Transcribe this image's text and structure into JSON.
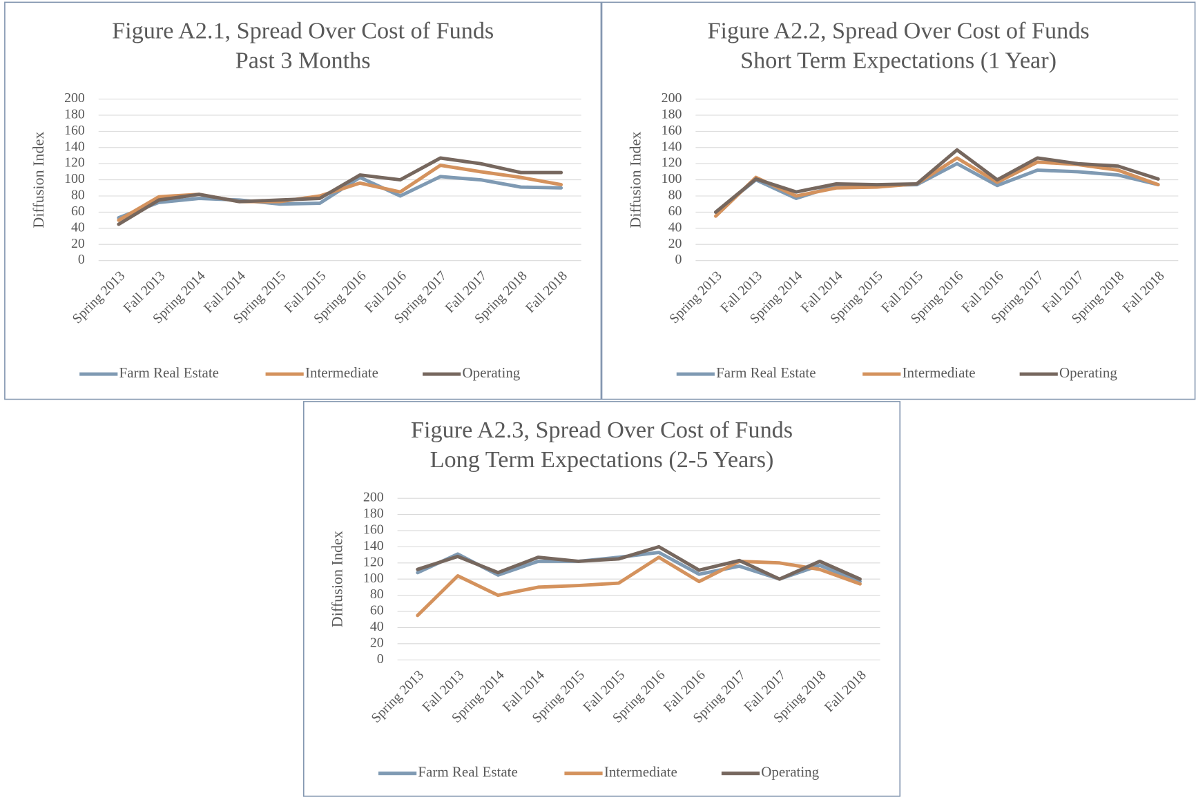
{
  "chart_data": [
    {
      "type": "line",
      "title": "Figure A2.1, Spread Over Cost of Funds",
      "subtitle": "Past 3 Months",
      "y_label": "Diffusion Index",
      "categories": [
        "Spring 2013",
        "Fall 2013",
        "Spring 2014",
        "Fall 2014",
        "Spring 2015",
        "Fall 2015",
        "Spring 2016",
        "Fall 2016",
        "Spring 2017",
        "Fall 2017",
        "Spring 2018",
        "Fall 2018"
      ],
      "series": [
        {
          "name": "Farm Real Estate",
          "color": "#7f9ab3",
          "values": [
            53,
            72,
            77,
            75,
            70,
            71,
            103,
            80,
            104,
            100,
            91,
            90
          ]
        },
        {
          "name": "Intermediate",
          "color": "#d4925d",
          "values": [
            50,
            79,
            82,
            73,
            73,
            80,
            96,
            85,
            118,
            110,
            103,
            94
          ]
        },
        {
          "name": "Operating",
          "color": "#76675e",
          "values": [
            45,
            75,
            82,
            73,
            75,
            77,
            106,
            100,
            127,
            120,
            109,
            109
          ]
        }
      ],
      "ylim": [
        0,
        200
      ],
      "yticks": [
        0,
        20,
        40,
        60,
        80,
        100,
        120,
        140,
        160,
        180,
        200
      ],
      "grid": true,
      "legend": "bottom"
    },
    {
      "type": "line",
      "title": "Figure A2.2, Spread Over Cost of Funds",
      "subtitle": "Short Term Expectations (1 Year)",
      "y_label": "Diffusion Index",
      "categories": [
        "Spring 2013",
        "Fall 2013",
        "Spring 2014",
        "Fall 2014",
        "Spring 2015",
        "Fall 2015",
        "Spring 2016",
        "Fall 2016",
        "Spring 2017",
        "Fall 2017",
        "Spring 2018",
        "Fall 2018"
      ],
      "series": [
        {
          "name": "Farm Real Estate",
          "color": "#7f9ab3",
          "values": [
            60,
            100,
            77,
            93,
            93,
            94,
            120,
            93,
            112,
            110,
            106,
            94
          ]
        },
        {
          "name": "Intermediate",
          "color": "#d4925d",
          "values": [
            55,
            103,
            80,
            90,
            91,
            95,
            127,
            97,
            122,
            119,
            112,
            94
          ]
        },
        {
          "name": "Operating",
          "color": "#76675e",
          "values": [
            60,
            101,
            85,
            95,
            94,
            95,
            137,
            100,
            127,
            120,
            117,
            101
          ]
        }
      ],
      "ylim": [
        0,
        200
      ],
      "yticks": [
        0,
        20,
        40,
        60,
        80,
        100,
        120,
        140,
        160,
        180,
        200
      ],
      "grid": true,
      "legend": "bottom"
    },
    {
      "type": "line",
      "title": "Figure A2.3, Spread Over Cost of Funds",
      "subtitle": "Long Term Expectations (2-5 Years)",
      "y_label": "Diffusion Index",
      "categories": [
        "Spring 2013",
        "Fall 2013",
        "Spring 2014",
        "Fall 2014",
        "Spring 2015",
        "Fall 2015",
        "Spring 2016",
        "Fall 2016",
        "Spring 2017",
        "Fall 2017",
        "Spring 2018",
        "Fall 2018"
      ],
      "series": [
        {
          "name": "Farm Real Estate",
          "color": "#7f9ab3",
          "values": [
            108,
            131,
            105,
            122,
            122,
            127,
            133,
            106,
            116,
            100,
            117,
            97
          ]
        },
        {
          "name": "Intermediate",
          "color": "#d4925d",
          "values": [
            55,
            104,
            80,
            90,
            92,
            95,
            127,
            97,
            122,
            120,
            112,
            94
          ]
        },
        {
          "name": "Operating",
          "color": "#76675e",
          "values": [
            112,
            128,
            108,
            127,
            122,
            125,
            140,
            111,
            123,
            100,
            122,
            100
          ]
        }
      ],
      "ylim": [
        0,
        200
      ],
      "yticks": [
        0,
        20,
        40,
        60,
        80,
        100,
        120,
        140,
        160,
        180,
        200
      ],
      "grid": true,
      "legend": "bottom"
    }
  ]
}
